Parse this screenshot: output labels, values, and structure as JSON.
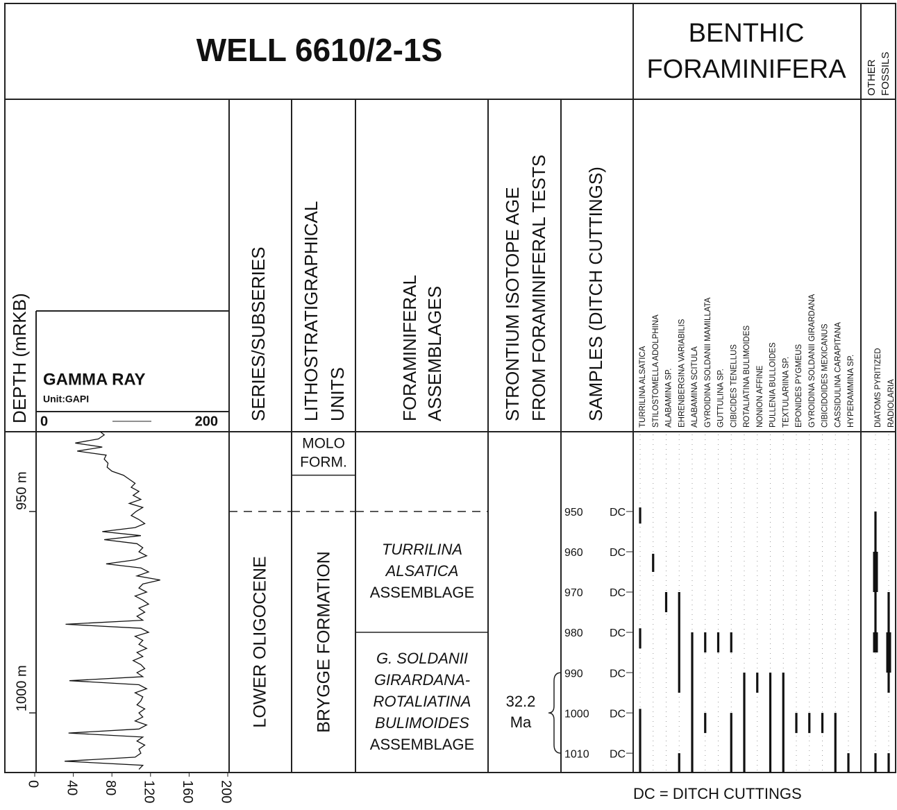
{
  "title": "WELL 6610/2-1S",
  "benthic_header": [
    "BENTHIC",
    "FORAMINIFERA"
  ],
  "other_header": [
    "OTHER",
    "FOSSILS"
  ],
  "columns": {
    "depth": "DEPTH (mRKB)",
    "series": "SERIES/SUBSERIES",
    "litho": [
      "LITHOSTRATIGRAPHICAL",
      "UNITS"
    ],
    "assemblages": [
      "FORAMINIFERAL",
      "ASSEMBLAGES"
    ],
    "strontium": [
      "STRONTIUM ISOTOPE AGE",
      "FROM FORAMINIFERAL TESTS"
    ],
    "samples": "SAMPLES (DITCH CUTTINGS)"
  },
  "depth_axis": {
    "ylim": [
      930.2,
      1014.8
    ],
    "ticks": [
      {
        "value": 950,
        "label": "950 m"
      },
      {
        "value": 1000,
        "label": "1000 m"
      }
    ]
  },
  "gamma_ray": {
    "title": "GAMMA RAY",
    "unit": "Unit:GAPI",
    "xlim": [
      0,
      200
    ],
    "xticks": [
      0,
      40,
      80,
      120,
      160,
      200
    ],
    "depths": [
      930,
      931,
      932,
      933,
      934,
      935,
      936,
      937,
      938,
      939,
      940,
      941,
      942,
      943,
      944,
      945,
      946,
      947,
      948,
      949,
      950,
      951,
      952,
      953,
      954,
      955,
      956,
      957,
      958,
      959,
      960,
      961,
      962,
      963,
      964,
      965,
      966,
      967,
      968,
      969,
      970,
      971,
      972,
      973,
      974,
      975,
      976,
      977,
      978,
      979,
      980,
      981,
      982,
      983,
      984,
      985,
      986,
      987,
      988,
      989,
      990,
      991,
      992,
      993,
      994,
      995,
      996,
      997,
      998,
      999,
      1000,
      1001,
      1002,
      1003,
      1004,
      1005,
      1006,
      1007,
      1008,
      1009,
      1010,
      1011,
      1012,
      1013,
      1014
    ],
    "values": [
      68,
      72,
      66,
      42,
      70,
      44,
      74,
      72,
      76,
      75,
      80,
      92,
      98,
      104,
      100,
      108,
      102,
      110,
      98,
      112,
      105,
      100,
      108,
      114,
      104,
      70,
      110,
      72,
      106,
      112,
      108,
      116,
      104,
      74,
      110,
      118,
      106,
      130,
      112,
      108,
      116,
      104,
      112,
      118,
      108,
      114,
      106,
      112,
      32,
      110,
      118,
      104,
      112,
      108,
      116,
      106,
      112,
      102,
      110,
      114,
      106,
      112,
      36,
      108,
      116,
      104,
      112,
      110,
      106,
      114,
      108,
      112,
      104,
      116,
      108,
      35,
      112,
      106,
      114,
      108,
      110,
      104,
      31,
      112,
      108
    ]
  },
  "series_units": [
    {
      "name": "LOWER OLIGOCENE",
      "top": 950
    }
  ],
  "litho_units": [
    {
      "name": [
        "MOLO",
        "FORM."
      ],
      "base": 941
    },
    {
      "name": "BRYGGE FORMATION",
      "top": 950
    }
  ],
  "assemblages": [
    {
      "name": [
        "TURRILINA",
        "ALSATICA"
      ],
      "suffix": "ASSEMBLAGE",
      "top": 950,
      "base": 980
    },
    {
      "name": [
        "G. SOLDANII",
        "GIRARDANA-",
        "ROTALIATINA",
        "BULIMOIDES"
      ],
      "suffix": "ASSEMBLAGE",
      "top": 980
    }
  ],
  "strontium": {
    "age": "32.2",
    "unit": "Ma",
    "from": 990,
    "to": 1010
  },
  "samples": {
    "label": "DC",
    "depths": [
      950,
      960,
      970,
      980,
      990,
      1000,
      1010
    ]
  },
  "taxa": [
    {
      "name": "TURRILINA ALSATICA",
      "ranges": [
        {
          "from": 949,
          "to": 953,
          "style": "thin"
        },
        {
          "from": 979,
          "to": 984,
          "style": "thin"
        },
        {
          "from": 999,
          "to": 1015,
          "style": "thin"
        }
      ]
    },
    {
      "name": "STILOSTOMELLA ADOLPHINA",
      "ranges": [
        {
          "from": 960.5,
          "to": 965,
          "style": "thin"
        }
      ]
    },
    {
      "name": "ALABAMINA SP.",
      "ranges": [
        {
          "from": 970,
          "to": 975,
          "style": "thin"
        }
      ]
    },
    {
      "name": "EHRENBERGINA VARIABILIS",
      "ranges": [
        {
          "from": 970,
          "to": 995,
          "style": "thin"
        },
        {
          "from": 1010,
          "to": 1015,
          "style": "thin"
        }
      ]
    },
    {
      "name": "ALABAMINA SCITULA",
      "ranges": [
        {
          "from": 980,
          "to": 1015,
          "style": "thin"
        }
      ]
    },
    {
      "name": "GYROIDINA SOLDANII MAMILLATA",
      "ranges": [
        {
          "from": 980,
          "to": 985,
          "style": "thin"
        },
        {
          "from": 1000,
          "to": 1005,
          "style": "thin"
        }
      ]
    },
    {
      "name": "GUTTULINA SP.",
      "ranges": [
        {
          "from": 980,
          "to": 985,
          "style": "thin"
        }
      ]
    },
    {
      "name": "CIBICIDES TENELLUS",
      "ranges": [
        {
          "from": 980,
          "to": 985,
          "style": "thin"
        },
        {
          "from": 1000,
          "to": 1015,
          "style": "thin"
        }
      ]
    },
    {
      "name": "ROTALIATINA BULIMOIDES",
      "ranges": [
        {
          "from": 990,
          "to": 1015,
          "style": "thin"
        }
      ]
    },
    {
      "name": "NONION AFFINE",
      "ranges": [
        {
          "from": 990,
          "to": 995,
          "style": "thin"
        }
      ]
    },
    {
      "name": "PULLENIA BULLOIDES",
      "ranges": [
        {
          "from": 990,
          "to": 1015,
          "style": "thin"
        }
      ]
    },
    {
      "name": "TEXTULARIINA SP.",
      "ranges": [
        {
          "from": 990,
          "to": 1015,
          "style": "thin"
        }
      ]
    },
    {
      "name": "EPONIDES PYGMEUS",
      "ranges": [
        {
          "from": 1000,
          "to": 1005,
          "style": "thin"
        }
      ]
    },
    {
      "name": "GYROIDINA SOLDANII GIRARDANA",
      "ranges": [
        {
          "from": 1000,
          "to": 1005,
          "style": "thin"
        }
      ]
    },
    {
      "name": "CIBICIDOIDES MEXICANUS",
      "ranges": [
        {
          "from": 1000,
          "to": 1005,
          "style": "thin"
        }
      ]
    },
    {
      "name": "CASSIDULINA CARAPITANA",
      "ranges": [
        {
          "from": 1000,
          "to": 1015,
          "style": "thin"
        }
      ]
    },
    {
      "name": "HYPERAMMINA SP.",
      "ranges": [
        {
          "from": 1010,
          "to": 1015,
          "style": "thin"
        }
      ]
    }
  ],
  "other_taxa": [
    {
      "name": "DIATOMS PYRITIZED",
      "ranges": [
        {
          "from": 950,
          "to": 985,
          "style": "thin"
        },
        {
          "from": 960,
          "to": 970,
          "style": "thick"
        },
        {
          "from": 980,
          "to": 985,
          "style": "thick"
        },
        {
          "from": 1010,
          "to": 1015,
          "style": "thin"
        }
      ]
    },
    {
      "name": "RADIOLARIA",
      "ranges": [
        {
          "from": 970,
          "to": 995,
          "style": "thin"
        },
        {
          "from": 980,
          "to": 990,
          "style": "thick"
        },
        {
          "from": 1010,
          "to": 1015,
          "style": "thin"
        }
      ]
    }
  ],
  "footnote": "DC = DITCH CUTTINGS"
}
